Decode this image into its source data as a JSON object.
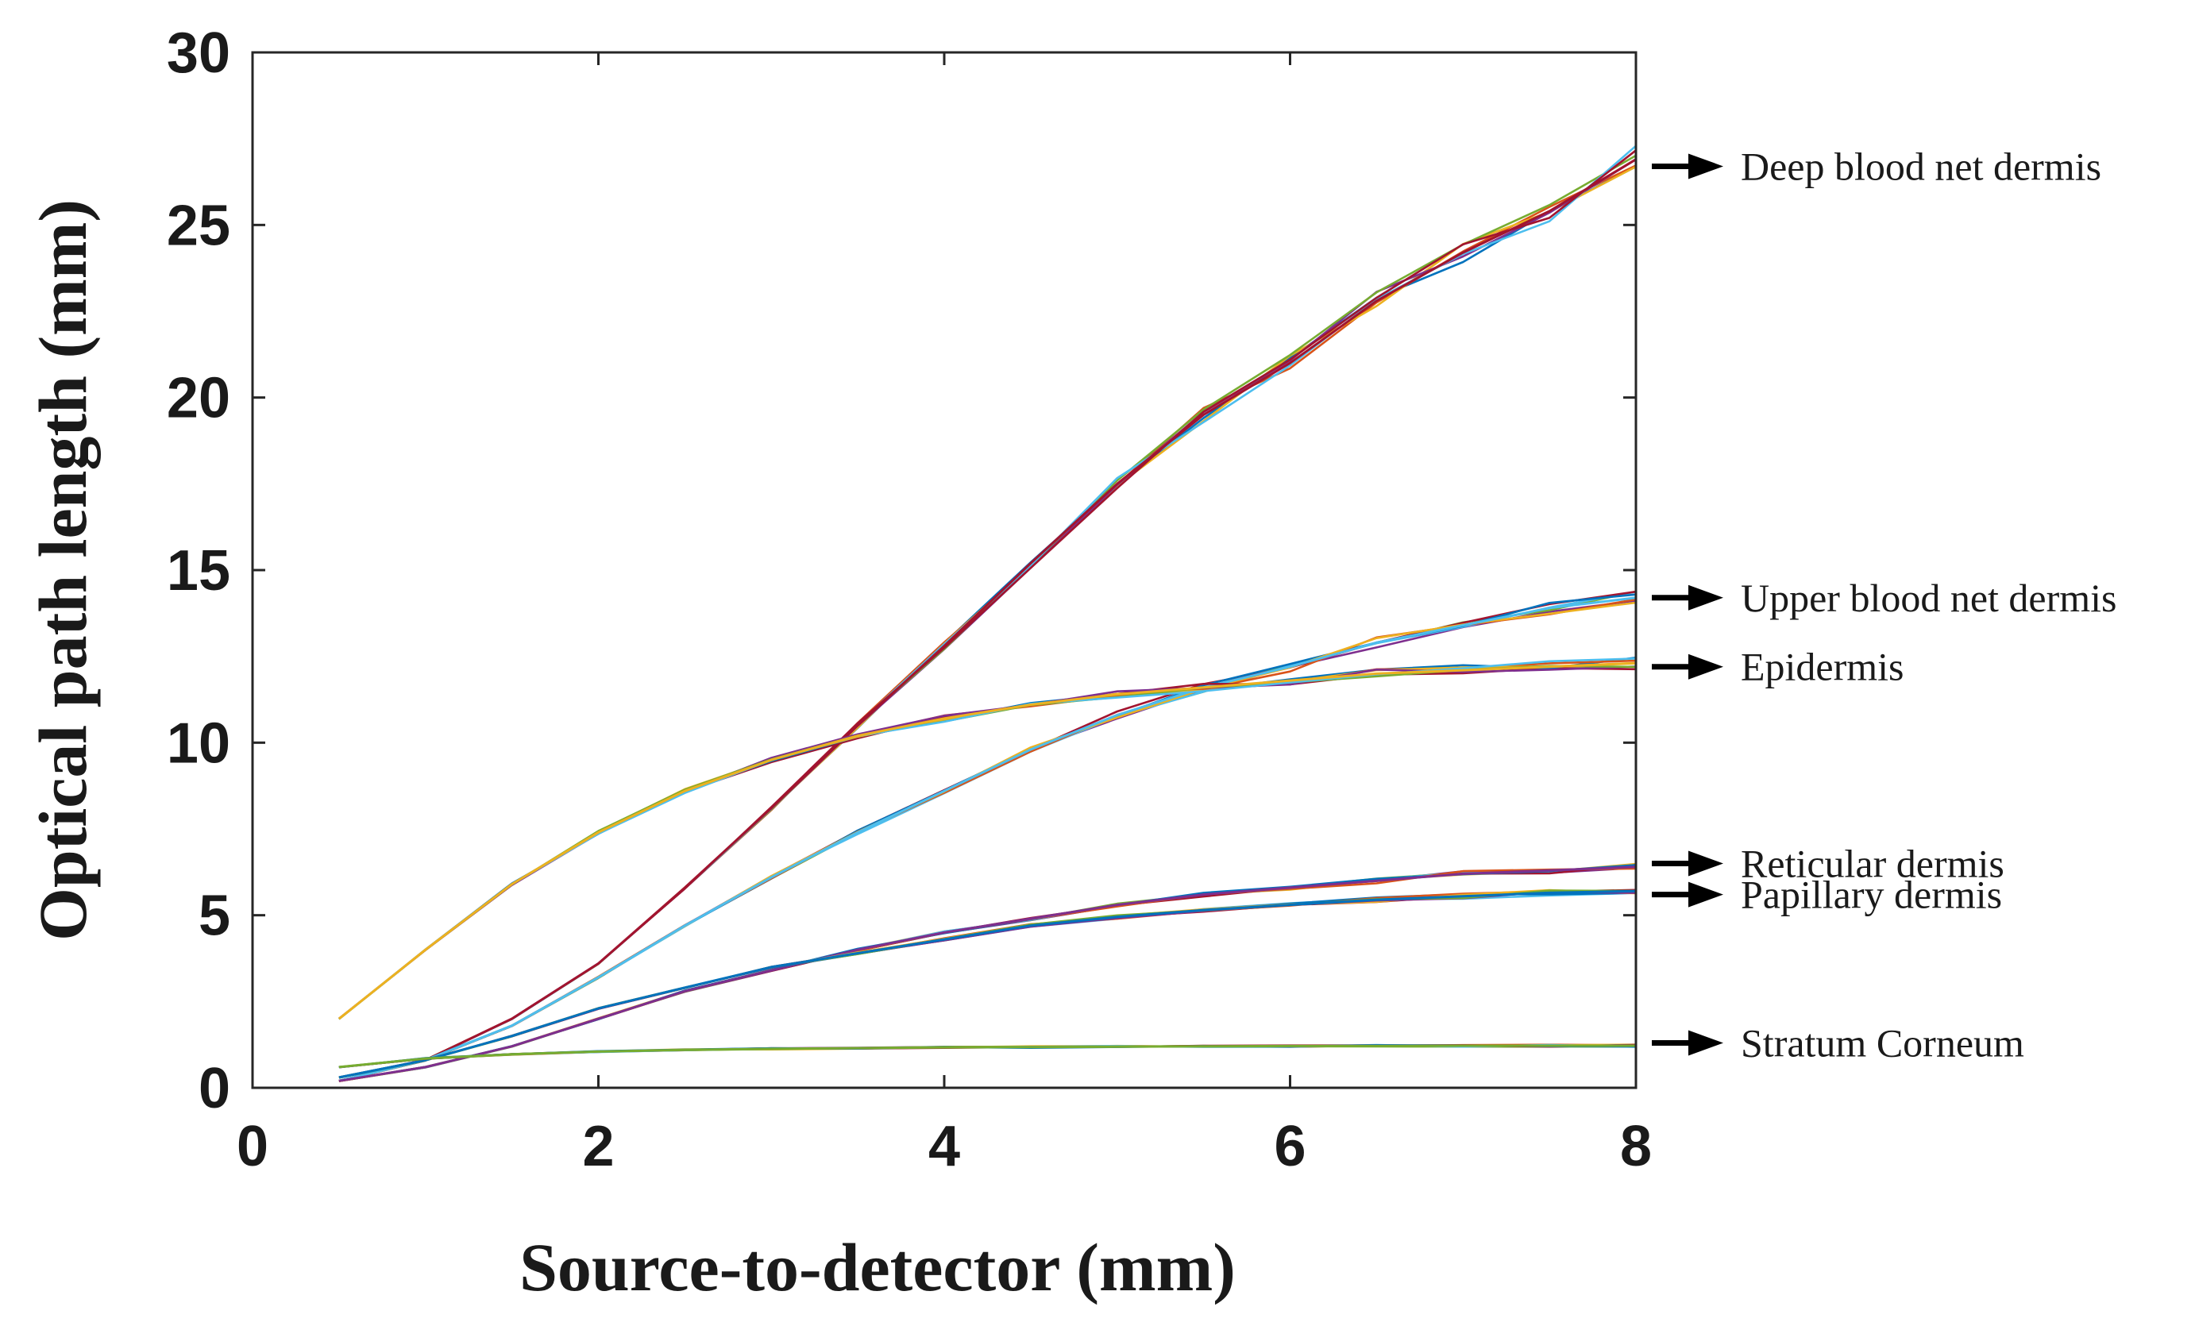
{
  "chart_data": {
    "type": "line",
    "title": "",
    "xlabel": "Source-to-detector (mm)",
    "ylabel": "Optical path length (mm)",
    "xlim": [
      0,
      8
    ],
    "ylim": [
      0,
      30
    ],
    "xticks": [
      0,
      2,
      4,
      6,
      8
    ],
    "yticks": [
      0,
      5,
      10,
      15,
      20,
      25,
      30
    ],
    "grid": false,
    "legend": "none",
    "x": [
      0.5,
      1.0,
      1.5,
      2.0,
      2.5,
      3.0,
      3.5,
      4.0,
      4.5,
      5.0,
      5.5,
      6.0,
      6.5,
      7.0,
      7.5,
      8.0
    ],
    "line_colors": [
      "#0072BD",
      "#D95319",
      "#EDB120",
      "#7E2F8E",
      "#77AC30",
      "#4DBEEE",
      "#A2142F"
    ],
    "series": [
      {
        "name": "Deep blood net dermis",
        "color": "#A2142F",
        "values": [
          0.2,
          0.8,
          2.0,
          3.6,
          5.8,
          8.1,
          10.5,
          12.8,
          15.2,
          17.5,
          19.5,
          21.0,
          22.8,
          24.2,
          25.4,
          26.9
        ]
      },
      {
        "name": "Upper blood net dermis",
        "color": "#4DBEEE",
        "values": [
          0.2,
          0.8,
          1.8,
          3.2,
          4.7,
          6.1,
          7.4,
          8.6,
          9.8,
          10.8,
          11.6,
          12.2,
          12.9,
          13.4,
          13.9,
          14.2
        ]
      },
      {
        "name": "Epidermis",
        "color": "#EDB120",
        "values": [
          2.0,
          4.0,
          5.9,
          7.4,
          8.6,
          9.5,
          10.2,
          10.7,
          11.1,
          11.4,
          11.6,
          11.8,
          12.0,
          12.1,
          12.2,
          12.3
        ]
      },
      {
        "name": "Reticular dermis",
        "color": "#7E2F8E",
        "values": [
          0.2,
          0.6,
          1.2,
          2.0,
          2.8,
          3.4,
          4.0,
          4.5,
          4.9,
          5.3,
          5.6,
          5.8,
          6.0,
          6.2,
          6.3,
          6.4
        ]
      },
      {
        "name": "Papillary dermis",
        "color": "#0072BD",
        "values": [
          0.3,
          0.8,
          1.5,
          2.3,
          2.9,
          3.5,
          3.9,
          4.3,
          4.7,
          4.95,
          5.15,
          5.3,
          5.45,
          5.55,
          5.65,
          5.7
        ]
      },
      {
        "name": "Stratum Corneum",
        "color": "#77AC30",
        "values": [
          0.6,
          0.85,
          0.97,
          1.05,
          1.1,
          1.13,
          1.15,
          1.17,
          1.18,
          1.19,
          1.2,
          1.21,
          1.21,
          1.22,
          1.22,
          1.22
        ]
      }
    ],
    "annotations": [
      {
        "text": "Deep blood net dermis",
        "y": 26.7
      },
      {
        "text": "Upper blood net dermis",
        "y": 14.2
      },
      {
        "text": "Epidermis",
        "y": 12.2
      },
      {
        "text": "Reticular dermis",
        "y": 6.5
      },
      {
        "text": "Papillary dermis",
        "y": 5.6
      },
      {
        "text": "Stratum Corneum",
        "y": 1.3
      }
    ]
  }
}
